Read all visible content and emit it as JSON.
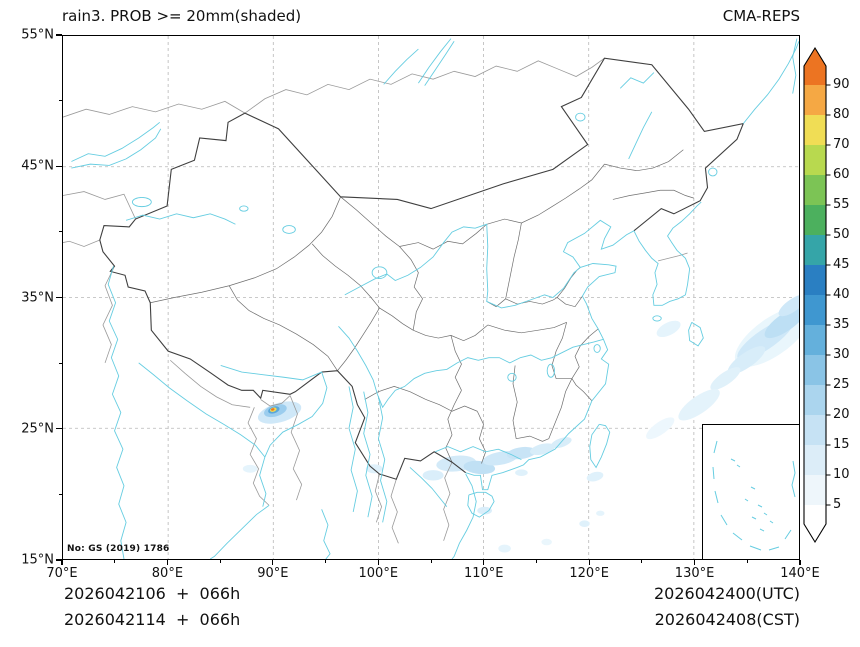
{
  "header": {
    "title": "rain3. PROB >= 20mm(shaded)",
    "model": "CMA-REPS"
  },
  "map": {
    "license": "No: GS (2019) 1786"
  },
  "axes": {
    "lat_ticks": [
      {
        "value": 55,
        "label": "55°N"
      },
      {
        "value": 45,
        "label": "45°N"
      },
      {
        "value": 35,
        "label": "35°N"
      },
      {
        "value": 25,
        "label": "25°N"
      },
      {
        "value": 15,
        "label": "15°N"
      }
    ],
    "lon_ticks": [
      {
        "value": 70,
        "label": "70°E"
      },
      {
        "value": 80,
        "label": "80°E"
      },
      {
        "value": 90,
        "label": "90°E"
      },
      {
        "value": 100,
        "label": "100°E"
      },
      {
        "value": 110,
        "label": "110°E"
      },
      {
        "value": 120,
        "label": "120°E"
      },
      {
        "value": 130,
        "label": "130°E"
      },
      {
        "value": 140,
        "label": "140°E"
      }
    ],
    "lat_minor": [
      20,
      30,
      40,
      50
    ],
    "lon_minor": [
      75,
      85,
      95,
      105,
      115,
      125,
      135
    ],
    "lat_grid": [
      25,
      35,
      45
    ],
    "lon_grid": [
      80,
      90,
      100,
      110,
      120,
      130
    ],
    "lon_range": [
      70,
      140
    ],
    "lat_range": [
      15,
      55
    ]
  },
  "colorbar": {
    "ticks": [
      5,
      10,
      15,
      20,
      25,
      30,
      35,
      40,
      45,
      50,
      55,
      60,
      70,
      80,
      90
    ],
    "colors": [
      "#ffffff",
      "#eef6fb",
      "#dcedf8",
      "#c6e2f4",
      "#abd5ee",
      "#8ac4e6",
      "#64b0dc",
      "#3f97d0",
      "#2a7fc2",
      "#35a5a8",
      "#4cb05e",
      "#7cc455",
      "#b8d94f",
      "#f0dd55",
      "#f5a844",
      "#ec7422"
    ]
  },
  "footer": {
    "left_line1": "2026042106  +  066h",
    "left_line2": "2026042114  +  066h",
    "right_line1": "2026042400(UTC)",
    "right_line2": "2026042408(CST)"
  },
  "chart_data": {
    "type": "heatmap",
    "subtype": "geographic-probability-map",
    "title": "rain3. PROB >= 20mm(shaded)",
    "model": "CMA-REPS",
    "variable": "3-hour rainfall probability >= 20mm (shaded)",
    "lon_range": [
      70,
      140
    ],
    "lat_range": [
      15,
      55
    ],
    "lon_ticks_deg": [
      70,
      80,
      90,
      100,
      110,
      120,
      130,
      140
    ],
    "lat_ticks_deg": [
      15,
      25,
      35,
      45,
      55
    ],
    "grid": "dashed",
    "legend_position": "right-colorbar",
    "colorbar_levels": [
      5,
      10,
      15,
      20,
      25,
      30,
      35,
      40,
      45,
      50,
      55,
      60,
      70,
      80,
      90
    ],
    "shaded_regions_summary": [
      {
        "area": "southern Tibet near 90E 26.4N",
        "peak_bin": "70-90",
        "extent": "small intense cell with light blue halo"
      },
      {
        "area": "south China coast 105-118E 21-24N",
        "peak_bin": "10-20",
        "extent": "scattered light blue patches"
      },
      {
        "area": "western Pacific 127-140E 25-35N",
        "peak_bin": "15-25",
        "extent": "diagonal light blue streaks"
      }
    ],
    "precip_cells": [
      [
        90.6,
        26.2,
        2.1,
        0.75,
        -12,
        "#cfe8f8"
      ],
      [
        90.2,
        26.35,
        1.1,
        0.45,
        -12,
        "#9bcdee"
      ],
      [
        90.05,
        26.4,
        0.55,
        0.26,
        -12,
        "#5aa7d8"
      ],
      [
        90.0,
        26.42,
        0.32,
        0.16,
        -12,
        "#f0dd55"
      ],
      [
        89.95,
        26.44,
        0.17,
        0.09,
        -12,
        "#ec7422"
      ],
      [
        107.4,
        22.3,
        1.9,
        0.6,
        -4,
        "#d3eaf8"
      ],
      [
        109.6,
        22.0,
        1.5,
        0.5,
        4,
        "#c0e0f4"
      ],
      [
        111.6,
        22.7,
        1.7,
        0.5,
        -8,
        "#cfe8f8"
      ],
      [
        113.6,
        23.1,
        1.4,
        0.45,
        -6,
        "#c8e4f6"
      ],
      [
        115.6,
        23.4,
        1.2,
        0.4,
        -10,
        "#d8edf9"
      ],
      [
        117.4,
        23.9,
        1.0,
        0.35,
        -14,
        "#d8edf9"
      ],
      [
        105.2,
        21.4,
        1.0,
        0.4,
        0,
        "#daeefa"
      ],
      [
        99.6,
        21.9,
        0.8,
        0.35,
        0,
        "#dff1fb"
      ],
      [
        110.1,
        18.7,
        0.7,
        0.3,
        0,
        "#daeefa"
      ],
      [
        113.6,
        21.6,
        0.6,
        0.25,
        0,
        "#dff1fb"
      ],
      [
        119.6,
        17.7,
        0.5,
        0.25,
        0,
        "#dff1fb"
      ],
      [
        121.1,
        18.5,
        0.4,
        0.2,
        0,
        "#e5f4fc"
      ],
      [
        120.6,
        21.3,
        0.8,
        0.35,
        -10,
        "#dff1fb"
      ],
      [
        87.8,
        21.9,
        0.7,
        0.3,
        0,
        "#e5f4fc"
      ],
      [
        112.0,
        15.8,
        0.6,
        0.3,
        0,
        "#e5f4fc"
      ],
      [
        116.0,
        16.3,
        0.5,
        0.25,
        0,
        "#eaf6fc"
      ],
      [
        137.5,
        32.0,
        4.0,
        1.5,
        -28,
        "#e9f6fc"
      ],
      [
        136.8,
        31.8,
        3.0,
        0.8,
        -28,
        "#cfe8f8"
      ],
      [
        138.7,
        33.1,
        2.2,
        0.7,
        -28,
        "#bddff4"
      ],
      [
        135.0,
        30.2,
        2.0,
        0.6,
        -28,
        "#d8edf9"
      ],
      [
        139.4,
        34.4,
        1.5,
        0.5,
        -28,
        "#cfe8f8"
      ],
      [
        133.0,
        28.8,
        1.6,
        0.5,
        -28,
        "#e0f1fa"
      ],
      [
        130.5,
        26.8,
        2.2,
        0.7,
        -28,
        "#e4f3fb"
      ],
      [
        126.8,
        25.0,
        1.5,
        0.5,
        -28,
        "#edf7fd"
      ],
      [
        127.6,
        32.6,
        1.2,
        0.5,
        -20,
        "#e5f4fc"
      ]
    ],
    "init_times": [
      "2026042106 + 066h",
      "2026042114 + 066h"
    ],
    "valid_times": [
      "2026042400(UTC)",
      "2026042408(CST)"
    ]
  }
}
